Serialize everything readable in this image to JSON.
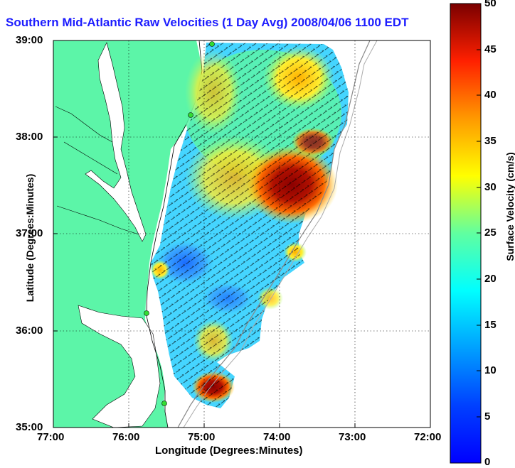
{
  "title": "Southern Mid-Atlantic Raw Velocities (1 Day Avg) 2008/04/06 1100 EDT",
  "map": {
    "lat_ticks": [
      "39:00",
      "38:00",
      "37:00",
      "36:00",
      "35:00"
    ],
    "lon_ticks": [
      "77:00",
      "76:00",
      "75:00",
      "74:00",
      "73:00",
      "72:00"
    ],
    "xlabel": "Longitude (Degrees:Minutes)",
    "ylabel": "Latitude (Degrees:Minutes)",
    "lat_range": [
      35,
      39
    ],
    "lon_range": [
      -77,
      -72
    ],
    "land_color": "#5cf5a8",
    "grid": "dotted"
  },
  "colorbar": {
    "label": "Surface Velocity (cm/s)",
    "ticks": [
      "50",
      "45",
      "40",
      "35",
      "30",
      "25",
      "20",
      "15",
      "10",
      "5",
      "0"
    ],
    "range": [
      0,
      50
    ],
    "colormap": "jet"
  }
}
